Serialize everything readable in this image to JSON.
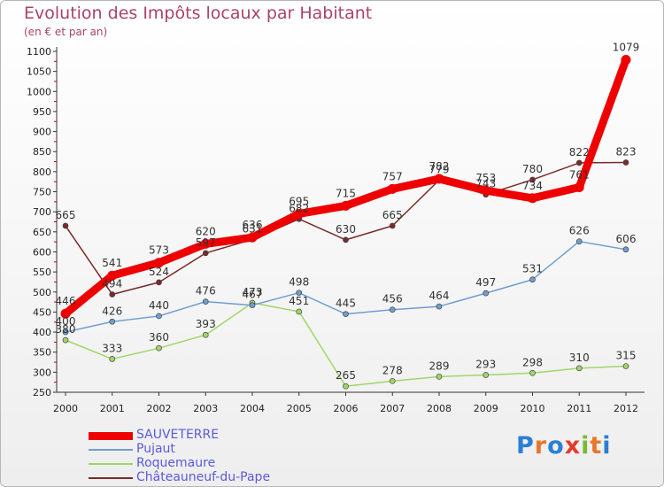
{
  "title": "Evolution des Impôts locaux par Habitant",
  "subtitle": "(en € et par an)",
  "logo": {
    "letters": [
      {
        "ch": "P",
        "color": "#2a7fd4"
      },
      {
        "ch": "r",
        "color": "#e8762b"
      },
      {
        "ch": "o",
        "color": "#2a7fd4"
      },
      {
        "ch": "x",
        "color": "#e53b2c"
      },
      {
        "ch": "i",
        "color": "#7cb833"
      },
      {
        "ch": "t",
        "color": "#e8762b"
      },
      {
        "ch": "i",
        "color": "#2a7fd4"
      }
    ]
  },
  "chart_data": {
    "type": "line",
    "x": [
      "2000",
      "2001",
      "2002",
      "2003",
      "2004",
      "2005",
      "2006",
      "2007",
      "2008",
      "2009",
      "2010",
      "2011",
      "2012"
    ],
    "ylim": [
      250,
      1100
    ],
    "yticks": [
      250,
      300,
      350,
      400,
      450,
      500,
      550,
      600,
      650,
      700,
      750,
      800,
      850,
      900,
      950,
      1000,
      1050,
      1100
    ],
    "grid": false,
    "legend_position": "bottom-left",
    "series": [
      {
        "name": "SAUVETERRE",
        "color": "#ee0000",
        "values": [
          446,
          541,
          573,
          620,
          636,
          695,
          715,
          757,
          782,
          753,
          734,
          761,
          1079
        ]
      },
      {
        "name": "Pujaut",
        "color": "#6e9ed0",
        "values": [
          400,
          426,
          440,
          476,
          467,
          498,
          445,
          456,
          464,
          497,
          531,
          626,
          606
        ]
      },
      {
        "name": "Roquemaure",
        "color": "#a0d66a",
        "values": [
          380,
          333,
          360,
          393,
          473,
          451,
          265,
          278,
          289,
          293,
          298,
          310,
          315
        ]
      },
      {
        "name": "Châteauneuf-du-Pape",
        "color": "#7a2a2a",
        "values": [
          665,
          494,
          524,
          597,
          631,
          682,
          630,
          665,
          779,
          743,
          780,
          822,
          823
        ]
      }
    ]
  }
}
